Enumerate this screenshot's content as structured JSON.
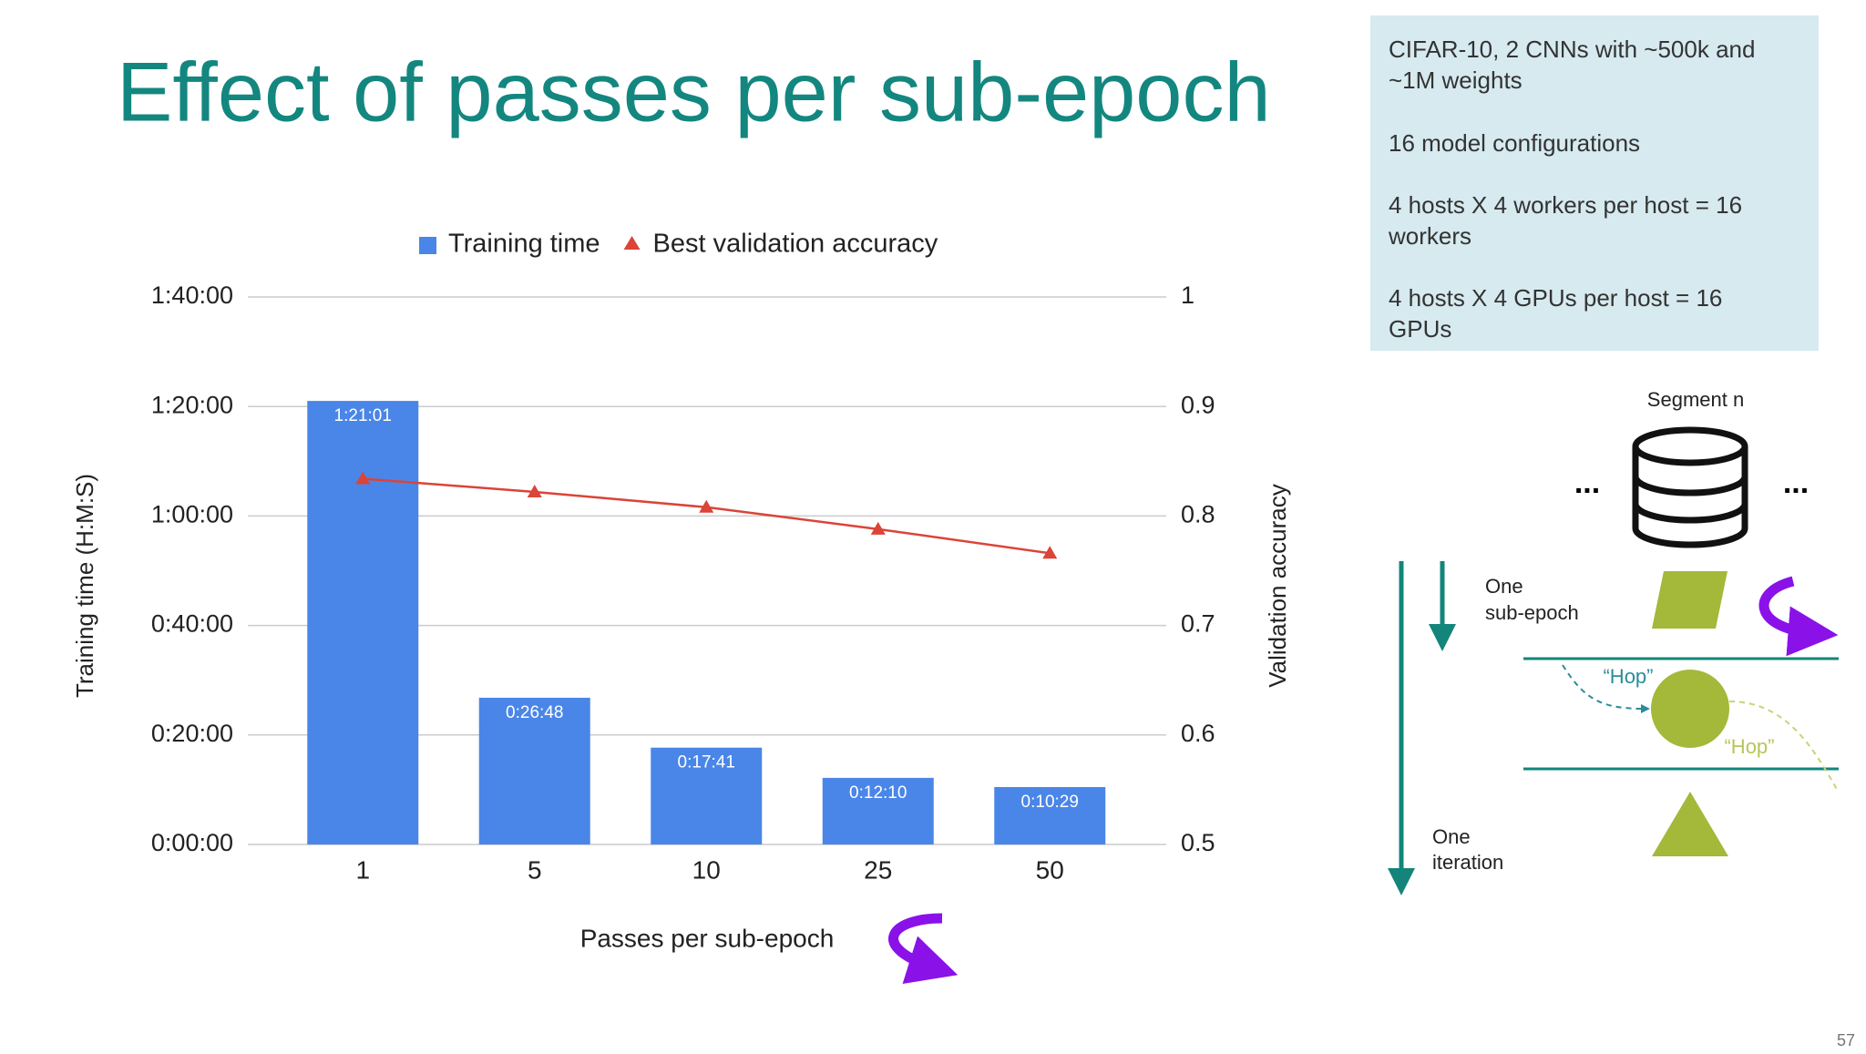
{
  "title": "Effect of passes per sub-epoch",
  "info": [
    [
      "CIFAR-10, 2 CNNs with ~500k and",
      "~1M weights"
    ],
    [
      "16 model configurations"
    ],
    [
      "4 hosts X 4 workers per host = 16",
      "workers"
    ],
    [
      "4 hosts X 4 GPUs per host = 16",
      "GPUs"
    ]
  ],
  "diagram": {
    "segment": "Segment n",
    "dots_left": "...",
    "dots_right": "...",
    "sub_epoch": [
      "One",
      "sub-epoch"
    ],
    "hop_in": "“Hop”",
    "hop_out": "“Hop”",
    "iteration": [
      "One",
      "iteration"
    ]
  },
  "page_number": "57",
  "chart_data": {
    "type": "combo",
    "categories": [
      "1",
      "5",
      "10",
      "25",
      "50"
    ],
    "series": [
      {
        "name": "Training time",
        "type": "bar",
        "color": "#4a86e8",
        "values": [
          4861,
          1608,
          1061,
          730,
          629
        ],
        "value_labels": [
          "1:21:01",
          "0:26:48",
          "0:17:41",
          "0:12:10",
          "0:10:29"
        ]
      },
      {
        "name": "Best validation accuracy",
        "type": "line",
        "axis": "y2",
        "color": "#db4437",
        "values": [
          0.834,
          0.822,
          0.808,
          0.788,
          0.766
        ]
      }
    ],
    "ylim": [
      0,
      6000
    ],
    "yticks": [
      {
        "value": 0,
        "label": "0:00:00"
      },
      {
        "value": 1200,
        "label": "0:20:00"
      },
      {
        "value": 2400,
        "label": "0:40:00"
      },
      {
        "value": 3600,
        "label": "1:00:00"
      },
      {
        "value": 4800,
        "label": "1:20:00"
      },
      {
        "value": 6000,
        "label": "1:40:00"
      }
    ],
    "y2lim": [
      0.5,
      1
    ],
    "y2ticks": [
      0.5,
      0.6,
      0.7,
      0.8,
      0.9,
      1
    ],
    "ylabel": "Training time (H:M:S)",
    "y2label": "Validation accuracy",
    "xlabel": "Passes per sub-epoch",
    "grid": true,
    "legend": "top"
  }
}
